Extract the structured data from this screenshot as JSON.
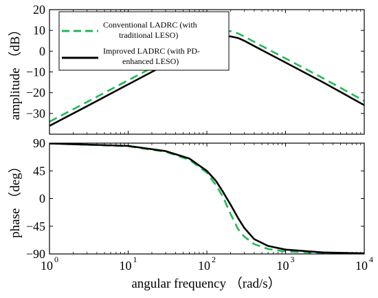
{
  "chart_data": [
    {
      "type": "line",
      "panel": "magnitude",
      "ylabel": "amplitude （dB）",
      "xscale": "log",
      "xlim": [
        1,
        10000
      ],
      "ylim": [
        -40,
        20
      ],
      "yticks": [
        "20",
        "10",
        "0",
        "−10",
        "−20",
        "−30"
      ],
      "ytick_values": [
        20,
        10,
        0,
        -10,
        -20,
        -30
      ],
      "grid": false,
      "legend_position": "top-left",
      "series": [
        {
          "name": "Conventional LADRC (with traditional LESO)",
          "legend_lines": [
            "Conventional LADRC (with",
            "traditional LESO)"
          ],
          "color": "#1db954",
          "style": "dashed",
          "x": [
            1,
            3,
            10,
            30,
            100,
            150,
            180,
            200,
            250,
            300,
            500,
            1000,
            3000,
            10000
          ],
          "y": [
            -34,
            -24.5,
            -14,
            -4.5,
            6,
            9,
            9.8,
            9.6,
            8.5,
            7,
            2.5,
            -3.5,
            -13,
            -24
          ]
        },
        {
          "name": "Improved LADRC (with PD-enhanced LESO)",
          "legend_lines": [
            "Improved LADRC (with PD-",
            "enhanced LESO)"
          ],
          "color": "#000000",
          "style": "solid",
          "x": [
            1,
            3,
            10,
            30,
            100,
            150,
            180,
            200,
            250,
            300,
            500,
            1000,
            3000,
            10000
          ],
          "y": [
            -36,
            -26.5,
            -16,
            -6.5,
            4,
            6.5,
            7.2,
            7.1,
            6.3,
            5,
            0.5,
            -5.5,
            -15,
            -26
          ]
        }
      ]
    },
    {
      "type": "line",
      "panel": "phase",
      "ylabel": "phase （deg）",
      "xlabel": "angular frequency （rad/s）",
      "xscale": "log",
      "xlim": [
        1,
        10000
      ],
      "ylim": [
        -90,
        90
      ],
      "yticks": [
        "90",
        "45",
        "0",
        "−45",
        "−90"
      ],
      "ytick_values": [
        90,
        45,
        0,
        -45,
        -90
      ],
      "xtick_values": [
        1,
        10,
        100,
        1000,
        10000
      ],
      "xtick_base": "10",
      "xtick_exponents": [
        "0",
        "1",
        "2",
        "3",
        "4"
      ],
      "grid": false,
      "series": [
        {
          "name": "Conventional LADRC (with traditional LESO)",
          "color": "#1db954",
          "style": "dashed",
          "x": [
            1,
            10,
            30,
            60,
            100,
            130,
            160,
            200,
            250,
            300,
            400,
            600,
            1000,
            3000,
            10000
          ],
          "y": [
            89.5,
            85,
            76,
            63,
            42,
            22,
            3,
            -25,
            -50,
            -62,
            -74,
            -82,
            -86,
            -88.5,
            -89.5
          ]
        },
        {
          "name": "Improved LADRC (with PD-enhanced LESO)",
          "color": "#000000",
          "style": "solid",
          "x": [
            1,
            10,
            30,
            60,
            100,
            130,
            160,
            200,
            250,
            300,
            400,
            600,
            1000,
            3000,
            10000
          ],
          "y": [
            89.5,
            85.5,
            77,
            65,
            45,
            29,
            11,
            -10,
            -32,
            -48,
            -66,
            -77,
            -83,
            -87.5,
            -89
          ]
        }
      ]
    }
  ]
}
